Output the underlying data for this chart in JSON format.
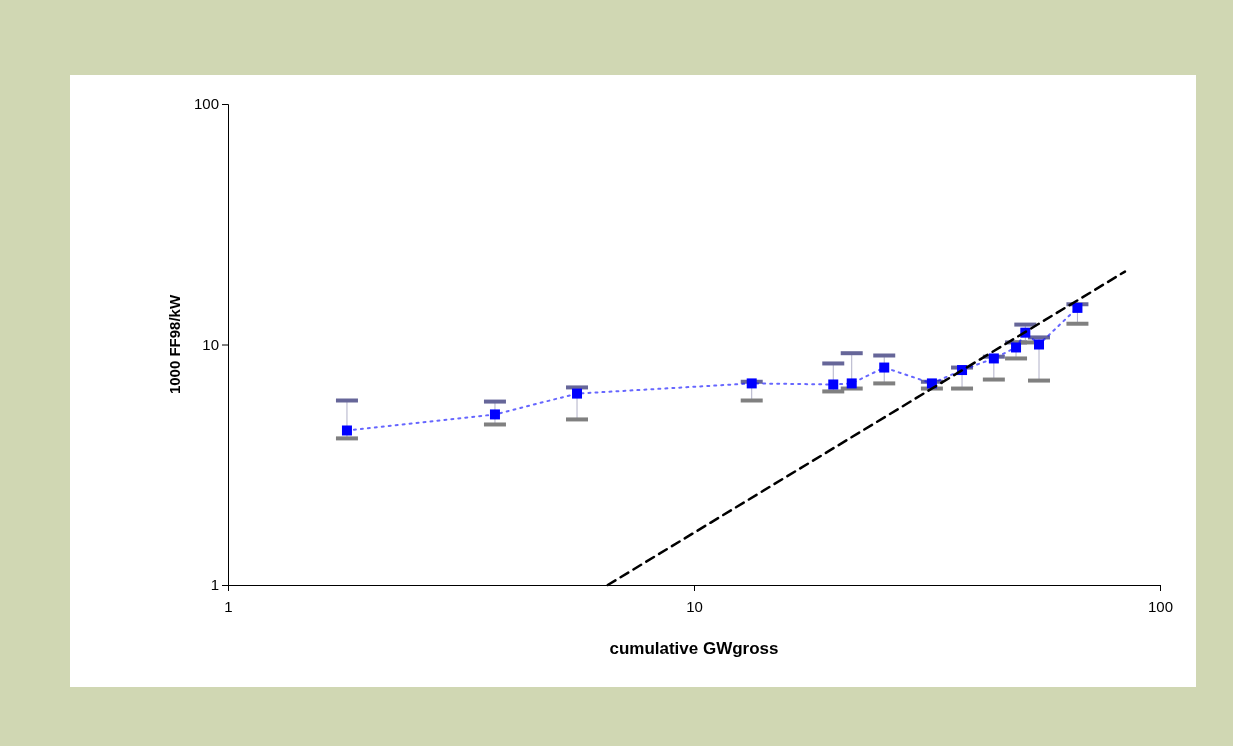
{
  "chart_data": {
    "type": "line",
    "xlabel": "cumulative GWgross",
    "ylabel": "1000 FF98/kW",
    "log": "xy",
    "xlim": [
      1,
      100
    ],
    "xticks": [
      1,
      10,
      100
    ],
    "ylim": [
      1,
      100
    ],
    "yticks": [
      1,
      10,
      100
    ],
    "x": [
      1.8,
      3.74,
      5.61,
      13.3,
      19.9,
      21.8,
      25.6,
      32.4,
      37.6,
      44.0,
      49.1,
      51.4,
      55.0,
      66.5
    ],
    "series": [
      {
        "marker": "square",
        "line_style": "dotted",
        "color": "#0000ff",
        "values": [
          4.39,
          5.12,
          6.25,
          6.89,
          6.82,
          6.89,
          8.02,
          6.89,
          7.83,
          8.75,
          9.72,
          11.2,
          10.0,
          14.2
        ],
        "errors": [
          [
            4.07,
            5.85
          ],
          [
            4.65,
            5.79
          ],
          [
            4.88,
            6.63
          ],
          [
            5.85,
            7.0
          ],
          [
            6.38,
            8.34
          ],
          [
            6.56,
            9.2
          ],
          [
            6.89,
            9.0
          ],
          [
            6.56,
            7.0
          ],
          [
            6.56,
            8.02
          ],
          [
            7.15,
            8.9
          ],
          [
            8.75,
            10.2
          ],
          [
            10.2,
            12.1
          ],
          [
            7.08,
            10.7
          ],
          [
            12.2,
            14.7
          ]
        ]
      },
      {
        "marker": "none",
        "line_style": "dashed",
        "color": "#000000",
        "x": [
          6.53,
          84.1
        ],
        "values": [
          1,
          20.1
        ]
      }
    ]
  }
}
